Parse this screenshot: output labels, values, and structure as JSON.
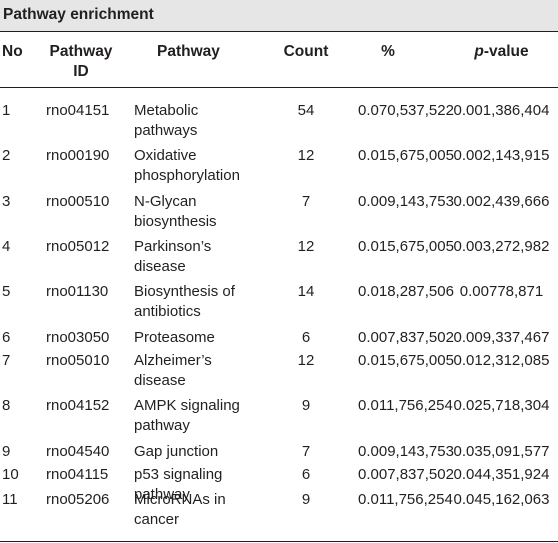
{
  "table": {
    "title": "Pathway enrichment",
    "headers": {
      "no": "No",
      "pathway_id_line1": "Pathway",
      "pathway_id_line2": "ID",
      "pathway": "Pathway",
      "count": "Count",
      "percent": "%",
      "pvalue_italic": "p",
      "pvalue_rest": "-value"
    },
    "rows": [
      {
        "no": "1",
        "id": "rno04151",
        "pathway_line1": "Metabolic",
        "pathway_line2": "pathways",
        "count": "54",
        "percent": "0.070,537,522",
        "pvalue": "0.001,386,404"
      },
      {
        "no": "2",
        "id": "rno00190",
        "pathway_line1": "Oxidative",
        "pathway_line2": "phosphorylation",
        "count": "12",
        "percent": "0.015,675,005",
        "pvalue": "0.002,143,915"
      },
      {
        "no": "3",
        "id": "rno00510",
        "pathway_line1": "N-Glycan",
        "pathway_line2": "biosynthesis",
        "count": "7",
        "percent": "0.009,143,753",
        "pvalue": "0.002,439,666"
      },
      {
        "no": "4",
        "id": "rno05012",
        "pathway_line1": "Parkinson’s",
        "pathway_line2": "disease",
        "count": "12",
        "percent": "0.015,675,005",
        "pvalue": "0.003,272,982"
      },
      {
        "no": "5",
        "id": "rno01130",
        "pathway_line1": "Biosynthesis of",
        "pathway_line2": "antibiotics",
        "count": "14",
        "percent": "0.018,287,506",
        "pvalue": "0.00778,871"
      },
      {
        "no": "6",
        "id": "rno03050",
        "pathway_line1": "Proteasome",
        "pathway_line2": "",
        "count": "6",
        "percent": "0.007,837,502",
        "pvalue": "0.009,337,467"
      },
      {
        "no": "7",
        "id": "rno05010",
        "pathway_line1": "Alzheimer’s",
        "pathway_line2": "disease",
        "count": "12",
        "percent": "0.015,675,005",
        "pvalue": "0.012,312,085"
      },
      {
        "no": "8",
        "id": "rno04152",
        "pathway_line1": "AMPK signaling",
        "pathway_line2": "pathway",
        "count": "9",
        "percent": "0.011,756,254",
        "pvalue": "0.025,718,304"
      },
      {
        "no": "9",
        "id": "rno04540",
        "pathway_line1": "Gap junction",
        "pathway_line2": "",
        "count": "7",
        "percent": "0.009,143,753",
        "pvalue": "0.035,091,577"
      },
      {
        "no": "10",
        "id": "rno04115",
        "pathway_line1": "p53 signaling",
        "pathway_line2": "pathway",
        "count": "6",
        "percent": "0.007,837,502",
        "pvalue": "0.044,351,924"
      },
      {
        "no": "11",
        "id": "rno05206",
        "pathway_line1": "MicroRNAs in",
        "pathway_line2": "cancer",
        "count": "9",
        "percent": "0.011,756,254",
        "pvalue": "0.045,162,063"
      }
    ]
  }
}
